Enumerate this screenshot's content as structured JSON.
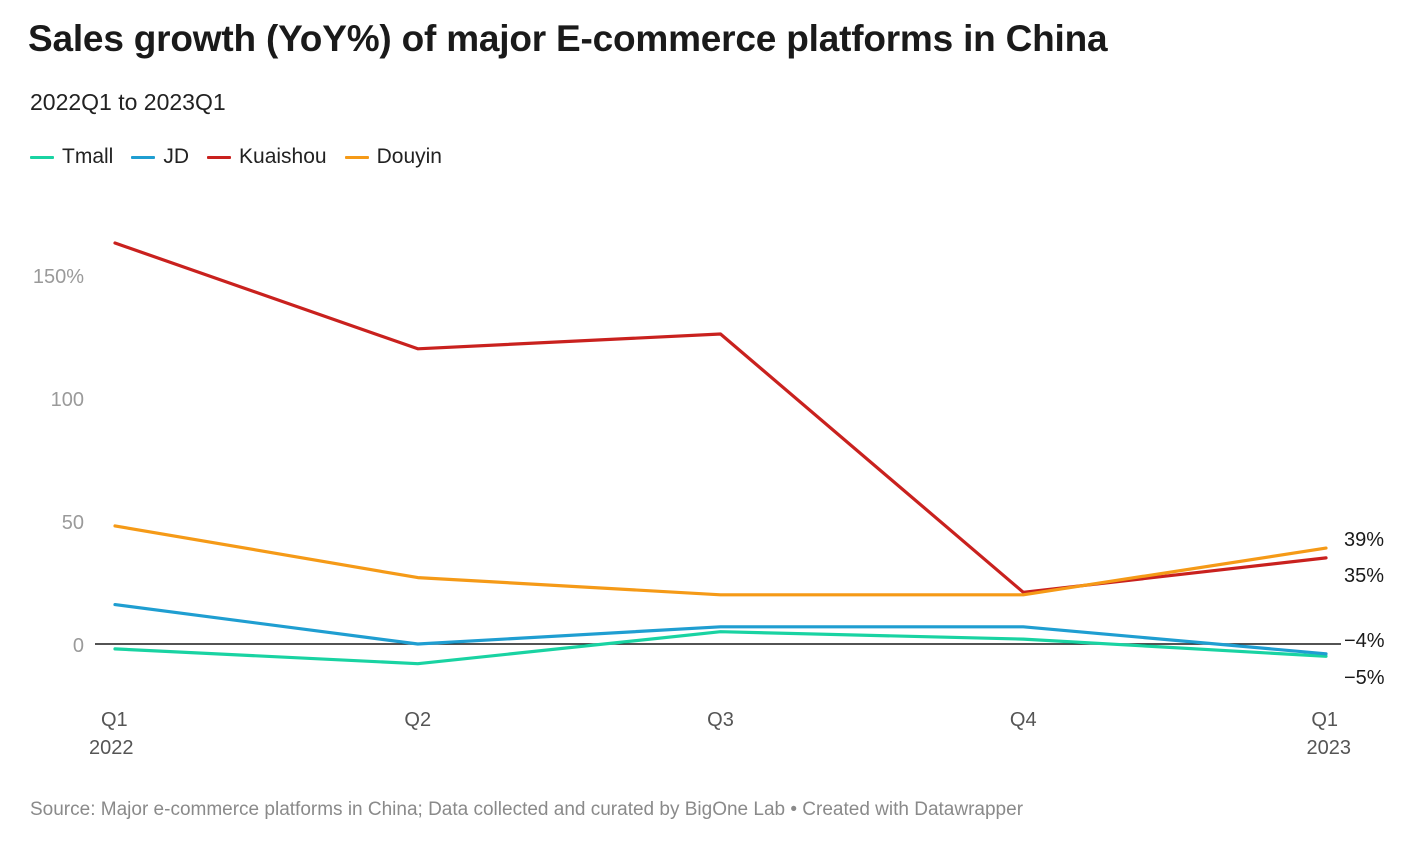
{
  "title": "Sales growth (YoY%) of major E-commerce platforms in China",
  "subtitle": "2022Q1 to 2023Q1",
  "source": "Source: Major e-commerce platforms in China; Data collected and curated by BigOne Lab • Created with Datawrapper",
  "chart_data": {
    "type": "line",
    "title": "Sales growth (YoY%) of major E-commerce platforms in China",
    "subtitle": "2022Q1 to 2023Q1",
    "categories": [
      "Q1 2022",
      "Q2",
      "Q3",
      "Q4",
      "Q1 2023"
    ],
    "x_tick_labels": [
      {
        "line1": "Q1",
        "line2": "2022"
      },
      {
        "line1": "Q2",
        "line2": ""
      },
      {
        "line1": "Q3",
        "line2": ""
      },
      {
        "line1": "Q4",
        "line2": ""
      },
      {
        "line1": "Q1",
        "line2": "2023"
      }
    ],
    "y_ticks": [
      0,
      50,
      100,
      150
    ],
    "y_tick_labels": [
      "0",
      "50",
      "100",
      "150%"
    ],
    "ylim": [
      -20,
      170
    ],
    "grid": false,
    "legend_position": "top-left",
    "series": [
      {
        "name": "Tmall",
        "color": "#19d3a2",
        "values": [
          -2,
          -8,
          5,
          2,
          -5
        ],
        "end_label": "−5%"
      },
      {
        "name": "JD",
        "color": "#1f9ed1",
        "values": [
          16,
          0,
          7,
          7,
          -4
        ],
        "end_label": "−4%"
      },
      {
        "name": "Kuaishou",
        "color": "#c9211e",
        "values": [
          163,
          120,
          126,
          21,
          35
        ],
        "end_label": "35%"
      },
      {
        "name": "Douyin",
        "color": "#f59a17",
        "values": [
          48,
          27,
          20,
          20,
          39
        ],
        "end_label": "39%"
      }
    ]
  }
}
